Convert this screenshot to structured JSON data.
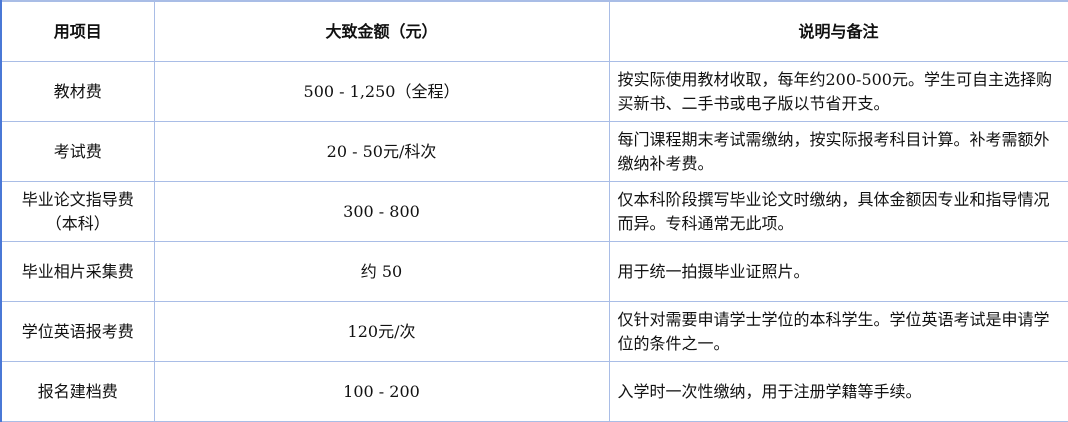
{
  "headers": [
    "用项目",
    "大致金额（元）",
    "说明与备注"
  ],
  "rows": [
    {
      "item": "教材费",
      "amount": "500 - 1,250（全程）",
      "note": "按实际使用教材收取，每年约200-500元。学生可自主选择购买新书、二手书或电子版以节省开支。"
    },
    {
      "item": "考试费",
      "amount": "20 - 50元/科次",
      "note": "每门课程期末考试需缴纳，按实际报考科目计算。补考需额外缴纳补考费。"
    },
    {
      "item": "毕业论文指导费（本科）",
      "amount": "300 - 800",
      "note": "仅本科阶段撰写毕业论文时缴纳，具体金额因专业和指导情况而异。专科通常无此项。"
    },
    {
      "item": "毕业相片采集费",
      "amount": "约 50",
      "note": "用于统一拍摄毕业证照片。"
    },
    {
      "item": "学位英语报考费",
      "amount": "120元/次",
      "note": "仅针对需要申请学士学位的本科学生。学位英语考试是申请学位的条件之一。"
    },
    {
      "item": "报名建档费",
      "amount": "100 - 200",
      "note": "入学时一次性缴纳，用于注册学籍等手续。"
    }
  ]
}
